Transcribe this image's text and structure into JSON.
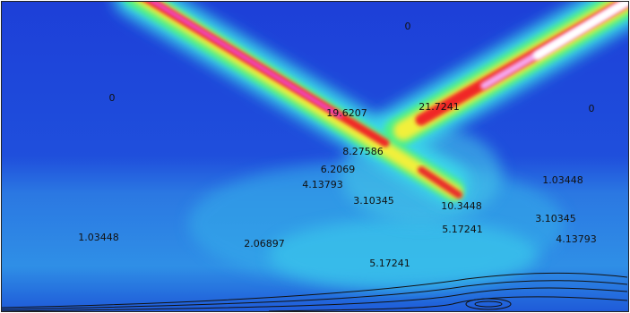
{
  "contour_labels": [
    "0",
    "0",
    "0",
    "19.6207",
    "21.7241",
    "8.27586",
    "6.2069",
    "4.13793",
    "3.10345",
    "10.3448",
    "1.03448",
    "3.10345",
    "5.17241",
    "4.13793",
    "1.03448",
    "2.06897",
    "5.17241"
  ]
}
